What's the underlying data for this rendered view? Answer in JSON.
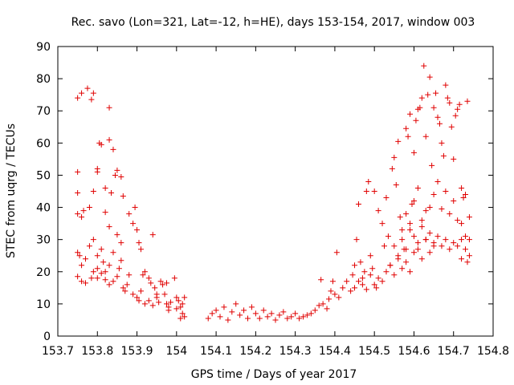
{
  "chart_data": {
    "type": "scatter",
    "title": "Rec. savo (Lon=321, Lat=-12, h=HE), days 153-154, 2017, window 003",
    "xlabel": "GPS time / Days of year 2017",
    "ylabel": "STEC from uqrg / TECUs",
    "xlim": [
      153.7,
      154.8
    ],
    "ylim": [
      0,
      90
    ],
    "xticks": [
      "153.7",
      "153.8",
      "153.9",
      "154",
      "154.1",
      "154.2",
      "154.3",
      "154.4",
      "154.5",
      "154.6",
      "154.7",
      "154.8"
    ],
    "yticks": [
      "0",
      "10",
      "20",
      "30",
      "40",
      "50",
      "60",
      "70",
      "80",
      "90"
    ],
    "grid": false,
    "marker": "+",
    "color": "#e00000",
    "series": [
      {
        "points": [
          [
            153.75,
            74
          ],
          [
            153.76,
            75.5
          ],
          [
            153.775,
            77
          ],
          [
            153.79,
            75.5
          ],
          [
            153.785,
            73.5
          ],
          [
            153.75,
            51
          ],
          [
            153.75,
            44.5
          ],
          [
            153.75,
            38
          ],
          [
            153.76,
            37
          ],
          [
            153.765,
            39
          ],
          [
            153.78,
            40
          ],
          [
            153.75,
            26
          ],
          [
            153.755,
            25
          ],
          [
            153.76,
            22
          ],
          [
            153.77,
            24
          ],
          [
            153.78,
            28
          ],
          [
            153.79,
            30
          ],
          [
            153.75,
            18.5
          ],
          [
            153.76,
            17
          ],
          [
            153.77,
            16.5
          ],
          [
            153.785,
            18
          ],
          [
            153.79,
            20
          ],
          [
            153.8,
            21
          ],
          [
            153.79,
            45
          ],
          [
            153.8,
            52
          ],
          [
            153.8,
            51
          ],
          [
            153.805,
            60
          ],
          [
            153.81,
            59.5
          ],
          [
            153.82,
            46
          ],
          [
            153.83,
            71
          ],
          [
            153.83,
            61
          ],
          [
            153.84,
            58
          ],
          [
            153.845,
            50
          ],
          [
            153.85,
            51.5
          ],
          [
            153.86,
            49.5
          ],
          [
            153.82,
            38.5
          ],
          [
            153.83,
            34
          ],
          [
            153.835,
            44.5
          ],
          [
            153.85,
            31.5
          ],
          [
            153.86,
            29
          ],
          [
            153.865,
            43.5
          ],
          [
            153.8,
            25
          ],
          [
            153.81,
            27
          ],
          [
            153.815,
            23
          ],
          [
            153.82,
            20
          ],
          [
            153.83,
            22
          ],
          [
            153.84,
            26
          ],
          [
            153.8,
            18
          ],
          [
            153.81,
            19.5
          ],
          [
            153.82,
            17.5
          ],
          [
            153.83,
            16
          ],
          [
            153.84,
            17
          ],
          [
            153.85,
            18.5
          ],
          [
            153.855,
            21
          ],
          [
            153.86,
            23.5
          ],
          [
            153.865,
            15
          ],
          [
            153.87,
            14
          ],
          [
            153.875,
            16
          ],
          [
            153.88,
            19
          ],
          [
            153.88,
            38
          ],
          [
            153.89,
            35
          ],
          [
            153.895,
            40
          ],
          [
            153.9,
            33
          ],
          [
            153.905,
            29
          ],
          [
            153.91,
            27
          ],
          [
            153.89,
            13
          ],
          [
            153.9,
            12
          ],
          [
            153.905,
            11
          ],
          [
            153.91,
            14
          ],
          [
            153.915,
            19
          ],
          [
            153.92,
            20
          ],
          [
            153.93,
            18
          ],
          [
            153.935,
            16.5
          ],
          [
            153.94,
            31.5
          ],
          [
            153.945,
            15
          ],
          [
            153.95,
            13
          ],
          [
            153.955,
            10.5
          ],
          [
            153.92,
            10
          ],
          [
            153.93,
            11
          ],
          [
            153.94,
            9.5
          ],
          [
            153.95,
            12
          ],
          [
            153.96,
            17
          ],
          [
            153.965,
            16
          ],
          [
            153.97,
            13
          ],
          [
            153.975,
            10
          ],
          [
            153.98,
            9
          ],
          [
            153.985,
            10.5
          ],
          [
            153.975,
            16.5
          ],
          [
            153.98,
            8
          ],
          [
            153.995,
            18
          ],
          [
            154.0,
            12
          ],
          [
            154.005,
            11
          ],
          [
            154.01,
            9
          ],
          [
            154.015,
            7
          ],
          [
            154.02,
            6
          ],
          [
            154.0,
            8.5
          ],
          [
            154.01,
            5.5
          ],
          [
            154.015,
            10
          ],
          [
            154.02,
            12
          ],
          [
            154.08,
            5.5
          ],
          [
            154.09,
            7
          ],
          [
            154.1,
            8
          ],
          [
            154.11,
            6
          ],
          [
            154.12,
            9
          ],
          [
            154.13,
            5
          ],
          [
            154.14,
            7.5
          ],
          [
            154.15,
            10
          ],
          [
            154.16,
            6.5
          ],
          [
            154.17,
            8
          ],
          [
            154.18,
            5.5
          ],
          [
            154.19,
            9
          ],
          [
            154.2,
            7
          ],
          [
            154.21,
            5.5
          ],
          [
            154.22,
            8
          ],
          [
            154.23,
            6
          ],
          [
            154.24,
            7
          ],
          [
            154.25,
            5
          ],
          [
            154.26,
            6.5
          ],
          [
            154.27,
            7.5
          ],
          [
            154.28,
            5.5
          ],
          [
            154.29,
            6
          ],
          [
            154.3,
            7
          ],
          [
            154.31,
            5.5
          ],
          [
            154.32,
            6
          ],
          [
            154.33,
            6.5
          ],
          [
            154.34,
            7
          ],
          [
            154.35,
            8
          ],
          [
            154.36,
            9.5
          ],
          [
            154.365,
            17.5
          ],
          [
            154.37,
            10
          ],
          [
            154.38,
            8.5
          ],
          [
            154.385,
            11.5
          ],
          [
            154.39,
            14
          ],
          [
            154.395,
            17
          ],
          [
            154.4,
            13
          ],
          [
            154.405,
            26
          ],
          [
            154.41,
            12
          ],
          [
            154.42,
            15
          ],
          [
            154.43,
            17
          ],
          [
            154.44,
            14
          ],
          [
            154.445,
            19
          ],
          [
            154.45,
            22
          ],
          [
            154.455,
            30
          ],
          [
            154.46,
            41
          ],
          [
            154.465,
            23
          ],
          [
            154.47,
            18
          ],
          [
            154.475,
            20
          ],
          [
            154.48,
            45
          ],
          [
            154.485,
            48
          ],
          [
            154.49,
            25
          ],
          [
            154.495,
            21
          ],
          [
            154.5,
            45
          ],
          [
            154.505,
            15
          ],
          [
            154.51,
            39
          ],
          [
            154.52,
            35
          ],
          [
            154.525,
            28
          ],
          [
            154.53,
            43
          ],
          [
            154.535,
            31
          ],
          [
            154.54,
            22
          ],
          [
            154.545,
            52
          ],
          [
            154.55,
            55.5
          ],
          [
            154.555,
            47
          ],
          [
            154.56,
            60.5
          ],
          [
            154.565,
            37
          ],
          [
            154.57,
            33
          ],
          [
            154.575,
            27
          ],
          [
            154.58,
            64.5
          ],
          [
            154.585,
            62
          ],
          [
            154.59,
            69
          ],
          [
            154.595,
            41
          ],
          [
            154.6,
            57
          ],
          [
            154.605,
            67
          ],
          [
            154.61,
            70.5
          ],
          [
            154.615,
            71
          ],
          [
            154.62,
            74
          ],
          [
            154.625,
            84
          ],
          [
            154.63,
            62
          ],
          [
            154.635,
            75
          ],
          [
            154.64,
            80.5
          ],
          [
            154.645,
            53
          ],
          [
            154.65,
            71
          ],
          [
            154.655,
            75.5
          ],
          [
            154.66,
            68
          ],
          [
            154.665,
            66
          ],
          [
            154.67,
            60
          ],
          [
            154.675,
            56
          ],
          [
            154.68,
            78
          ],
          [
            154.685,
            74
          ],
          [
            154.69,
            72.5
          ],
          [
            154.695,
            65
          ],
          [
            154.7,
            55
          ],
          [
            154.705,
            68.5
          ],
          [
            154.71,
            70.5
          ],
          [
            154.715,
            72
          ],
          [
            154.72,
            46
          ],
          [
            154.725,
            43
          ],
          [
            154.73,
            44
          ],
          [
            154.735,
            73
          ],
          [
            154.74,
            37
          ],
          [
            154.58,
            38
          ],
          [
            154.59,
            35
          ],
          [
            154.6,
            42
          ],
          [
            154.61,
            46
          ],
          [
            154.62,
            36
          ],
          [
            154.63,
            39
          ],
          [
            154.64,
            40
          ],
          [
            154.65,
            44
          ],
          [
            154.66,
            48
          ],
          [
            154.67,
            39.5
          ],
          [
            154.68,
            45
          ],
          [
            154.69,
            38
          ],
          [
            154.7,
            42
          ],
          [
            154.71,
            36
          ],
          [
            154.72,
            35
          ],
          [
            154.73,
            31
          ],
          [
            154.74,
            30
          ],
          [
            154.55,
            28
          ],
          [
            154.56,
            25
          ],
          [
            154.57,
            30
          ],
          [
            154.58,
            27
          ],
          [
            154.59,
            33
          ],
          [
            154.6,
            31
          ],
          [
            154.61,
            29
          ],
          [
            154.62,
            34
          ],
          [
            154.63,
            30
          ],
          [
            154.64,
            32
          ],
          [
            154.65,
            29
          ],
          [
            154.66,
            31
          ],
          [
            154.67,
            28
          ],
          [
            154.68,
            30
          ],
          [
            154.69,
            27
          ],
          [
            154.7,
            29
          ],
          [
            154.71,
            28
          ],
          [
            154.72,
            30
          ],
          [
            154.73,
            27
          ],
          [
            154.74,
            25
          ],
          [
            154.735,
            23
          ],
          [
            154.72,
            24
          ],
          [
            154.45,
            15
          ],
          [
            154.46,
            17
          ],
          [
            154.47,
            16
          ],
          [
            154.48,
            14.5
          ],
          [
            154.49,
            19
          ],
          [
            154.5,
            16
          ],
          [
            154.51,
            18
          ],
          [
            154.52,
            17
          ],
          [
            154.53,
            20
          ],
          [
            154.54,
            22
          ],
          [
            154.55,
            19
          ],
          [
            154.56,
            24
          ],
          [
            154.57,
            21
          ],
          [
            154.58,
            23
          ],
          [
            154.59,
            20
          ],
          [
            154.6,
            26
          ],
          [
            154.61,
            27
          ],
          [
            154.62,
            24
          ],
          [
            154.63,
            30
          ],
          [
            154.64,
            26
          ],
          [
            154.65,
            28
          ]
        ]
      }
    ]
  }
}
